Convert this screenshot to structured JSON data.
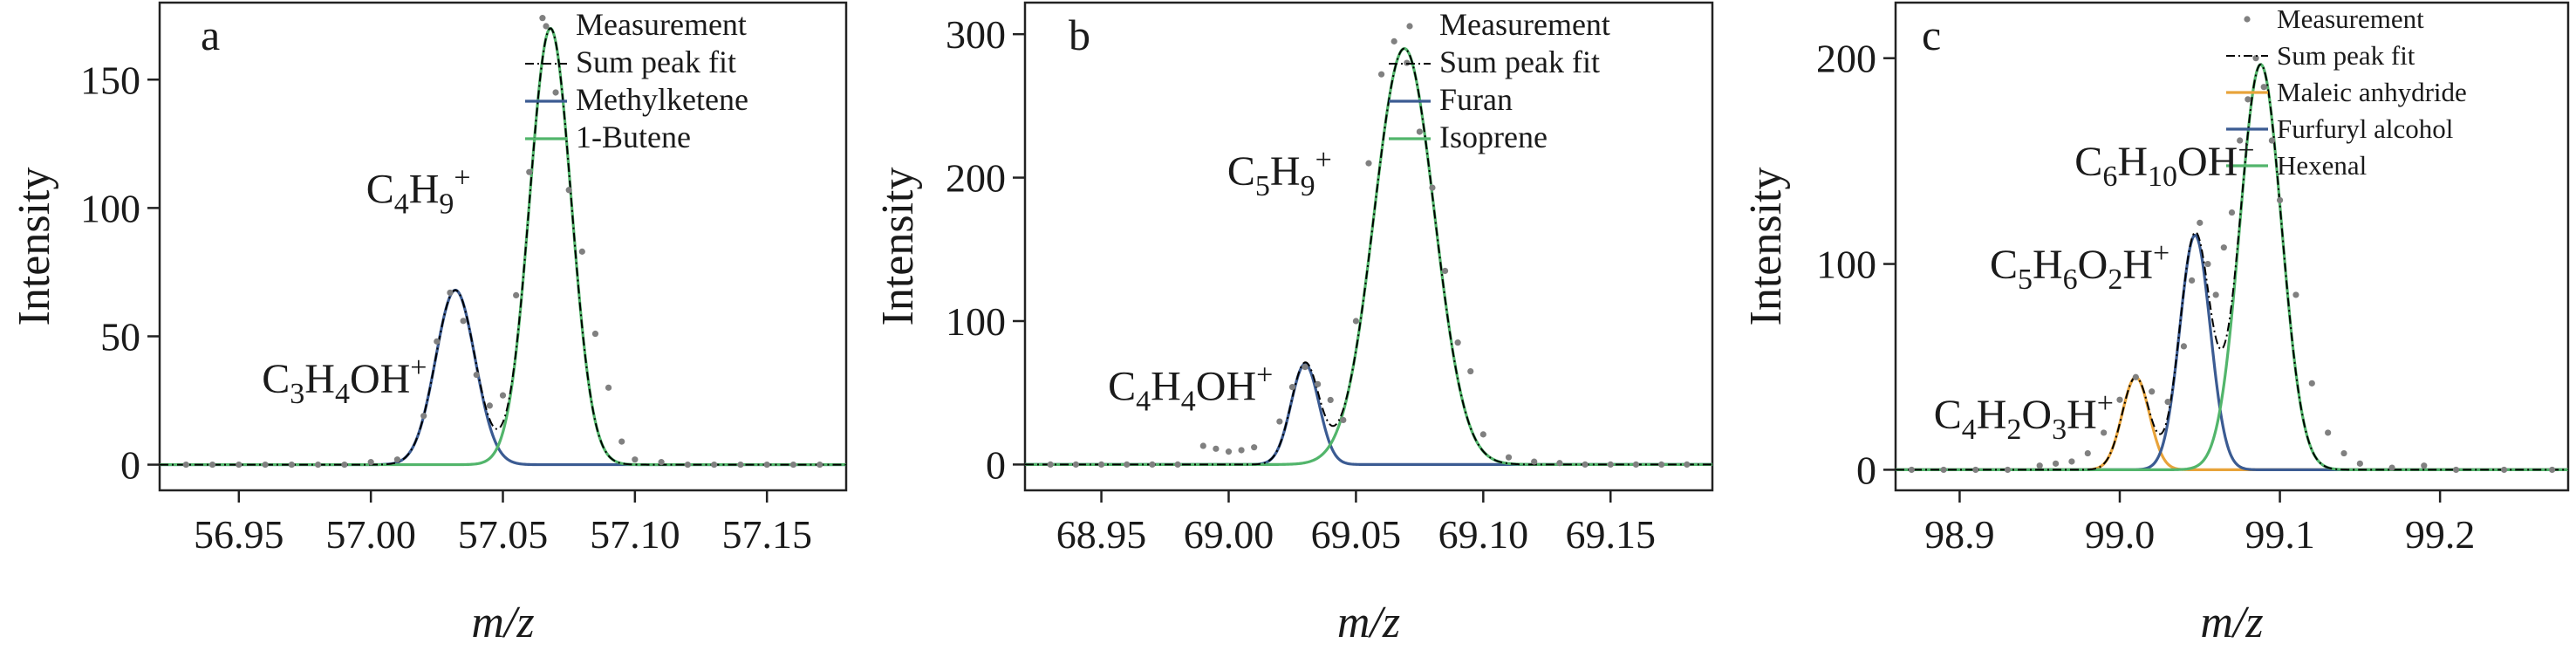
{
  "chart_data": [
    {
      "type": "line",
      "panel": "a",
      "xlabel": "m/z",
      "ylabel": "Intensity",
      "xlim": [
        56.92,
        57.18
      ],
      "ylim": [
        -10,
        180
      ],
      "xticks": [
        56.95,
        57.0,
        57.05,
        57.1,
        57.15
      ],
      "xtick_labels": [
        "56.95",
        "57.00",
        "57.05",
        "57.10",
        "57.15"
      ],
      "yticks": [
        0,
        50,
        100,
        150
      ],
      "ytick_labels": [
        "0",
        "50",
        "100",
        "150"
      ],
      "legend": [
        "Measurement",
        "Sum peak fit",
        "Methylketene",
        "1-Butene"
      ],
      "legend_position": "top-right",
      "annotations": [
        {
          "label_main": "C",
          "sub1": "4",
          "mid": "H",
          "sub2": "9",
          "sup": "+",
          "x": 57.018,
          "y": 102
        },
        {
          "label_main": "C",
          "sub1": "3",
          "mid": "H",
          "sub2": "4",
          "tail": "OH",
          "sup": "+",
          "x": 56.99,
          "y": 28
        }
      ],
      "series": [
        {
          "name": "Methylketene",
          "kind": "gauss",
          "color": "#3b5b92",
          "amp": 68,
          "center": 57.032,
          "sigma": 0.0075
        },
        {
          "name": "1-Butene",
          "kind": "gauss",
          "color": "#52b56b",
          "amp": 170,
          "center": 57.068,
          "sigma": 0.0079
        },
        {
          "name": "Sum peak fit",
          "kind": "sum",
          "color": "#000000"
        },
        {
          "name": "Measurement",
          "kind": "points",
          "color": "#808080",
          "x": [
            56.93,
            56.94,
            56.95,
            56.96,
            56.97,
            56.98,
            56.99,
            57.0,
            57.01,
            57.02,
            57.025,
            57.03,
            57.035,
            57.04,
            57.045,
            57.05,
            57.055,
            57.06,
            57.065,
            57.07,
            57.075,
            57.08,
            57.085,
            57.09,
            57.095,
            57.1,
            57.11,
            57.12,
            57.13,
            57.14,
            57.15,
            57.16,
            57.17
          ],
          "y": [
            0,
            0,
            0,
            0,
            0,
            0,
            0,
            1,
            2,
            19,
            48,
            67,
            56,
            35,
            23,
            27,
            66,
            114,
            174,
            145,
            107,
            83,
            51,
            30,
            9,
            2,
            1,
            0,
            0,
            0,
            0,
            0,
            0
          ]
        }
      ]
    },
    {
      "type": "line",
      "panel": "b",
      "xlabel": "m/z",
      "ylabel": "Intensity",
      "xlim": [
        68.92,
        69.19
      ],
      "ylim": [
        -18,
        322
      ],
      "xticks": [
        68.95,
        69.0,
        69.05,
        69.1,
        69.15
      ],
      "xtick_labels": [
        "68.95",
        "69.00",
        "69.05",
        "69.10",
        "69.15"
      ],
      "yticks": [
        0,
        100,
        200,
        300
      ],
      "ytick_labels": [
        "0",
        "100",
        "200",
        "300"
      ],
      "legend": [
        "Measurement",
        "Sum peak fit",
        "Furan",
        "Isoprene"
      ],
      "legend_position": "top-right",
      "annotations": [
        {
          "label_main": "C",
          "sub1": "5",
          "mid": "H",
          "sub2": "9",
          "sup": "+",
          "x": 69.02,
          "y": 195
        },
        {
          "label_main": "C",
          "sub1": "4",
          "mid": "H",
          "sub2": "4",
          "tail": "OH",
          "sup": "+",
          "x": 68.985,
          "y": 45
        }
      ],
      "series": [
        {
          "name": "Furan",
          "kind": "gauss",
          "color": "#3b5b92",
          "amp": 70,
          "center": 69.03,
          "sigma": 0.0055
        },
        {
          "name": "Isoprene",
          "kind": "gauss",
          "color": "#52b56b",
          "amp": 290,
          "center": 69.069,
          "sigma": 0.0118
        },
        {
          "name": "Sum peak fit",
          "kind": "sum",
          "color": "#000000"
        },
        {
          "name": "Measurement",
          "kind": "points",
          "color": "#808080",
          "x": [
            68.93,
            68.94,
            68.95,
            68.96,
            68.97,
            68.98,
            68.99,
            68.995,
            69.0,
            69.005,
            69.01,
            69.02,
            69.025,
            69.03,
            69.035,
            69.04,
            69.045,
            69.05,
            69.055,
            69.06,
            69.065,
            69.07,
            69.075,
            69.08,
            69.085,
            69.09,
            69.095,
            69.1,
            69.11,
            69.12,
            69.13,
            69.14,
            69.15,
            69.16,
            69.17,
            69.18
          ],
          "y": [
            0,
            0,
            0,
            0,
            0,
            0,
            13,
            11,
            9,
            10,
            12,
            30,
            54,
            68,
            56,
            45,
            31,
            100,
            210,
            272,
            295,
            280,
            232,
            193,
            135,
            85,
            65,
            21,
            5,
            2,
            1,
            0,
            0,
            0,
            0,
            0
          ]
        }
      ]
    },
    {
      "type": "line",
      "panel": "c",
      "xlabel": "m/z",
      "ylabel": "Intensity",
      "xlim": [
        98.86,
        99.28
      ],
      "ylim": [
        -10,
        227
      ],
      "xticks": [
        98.9,
        99.0,
        99.1,
        99.2
      ],
      "xtick_labels": [
        "98.9",
        "99.0",
        "99.1",
        "99.2"
      ],
      "yticks": [
        0,
        100,
        200
      ],
      "ytick_labels": [
        "0",
        "100",
        "200"
      ],
      "legend": [
        "Measurement",
        "Sum peak fit",
        "Maleic anhydride",
        "Furfuryl alcohol",
        "Hexenal"
      ],
      "legend_position": "top-right",
      "annotations": [
        {
          "label_main": "C",
          "sub1": "6",
          "mid": "H",
          "sub2": "10",
          "tail": "OH",
          "sup": "+",
          "x": 99.028,
          "y": 143
        },
        {
          "label_main": "C",
          "sub1": "5",
          "mid": "H",
          "sub2": "6",
          "tail": "O",
          "sub3": "2",
          "tail2": "H",
          "sup": "+",
          "x": 98.975,
          "y": 93
        },
        {
          "label_main": "C",
          "sub1": "4",
          "mid": "H",
          "sub2": "2",
          "tail": "O",
          "sub3": "3",
          "tail2": "H",
          "sup": "+",
          "x": 98.94,
          "y": 20
        }
      ],
      "series": [
        {
          "name": "Maleic anhydride",
          "kind": "gauss",
          "color": "#e8a33a",
          "amp": 45,
          "center": 99.01,
          "sigma": 0.0085
        },
        {
          "name": "Furfuryl alcohol",
          "kind": "gauss",
          "color": "#3b5b92",
          "amp": 114,
          "center": 99.047,
          "sigma": 0.0095
        },
        {
          "name": "Hexenal",
          "kind": "gauss",
          "color": "#52b56b",
          "amp": 197,
          "center": 99.088,
          "sigma": 0.013
        },
        {
          "name": "Sum peak fit",
          "kind": "sum",
          "color": "#000000"
        },
        {
          "name": "Measurement",
          "kind": "points",
          "color": "#808080",
          "x": [
            98.87,
            98.89,
            98.91,
            98.93,
            98.95,
            98.96,
            98.97,
            98.98,
            98.99,
            99.0,
            99.01,
            99.02,
            99.03,
            99.04,
            99.045,
            99.05,
            99.055,
            99.06,
            99.065,
            99.07,
            99.075,
            99.08,
            99.085,
            99.09,
            99.095,
            99.1,
            99.11,
            99.12,
            99.13,
            99.14,
            99.15,
            99.17,
            99.19,
            99.21,
            99.24,
            99.27
          ],
          "y": [
            0,
            0,
            0,
            0,
            2,
            3,
            4,
            8,
            18,
            34,
            45,
            38,
            33,
            60,
            92,
            120,
            100,
            85,
            108,
            125,
            160,
            180,
            200,
            186,
            160,
            131,
            85,
            42,
            18,
            8,
            3,
            1,
            2,
            0,
            0,
            0
          ]
        }
      ]
    }
  ]
}
